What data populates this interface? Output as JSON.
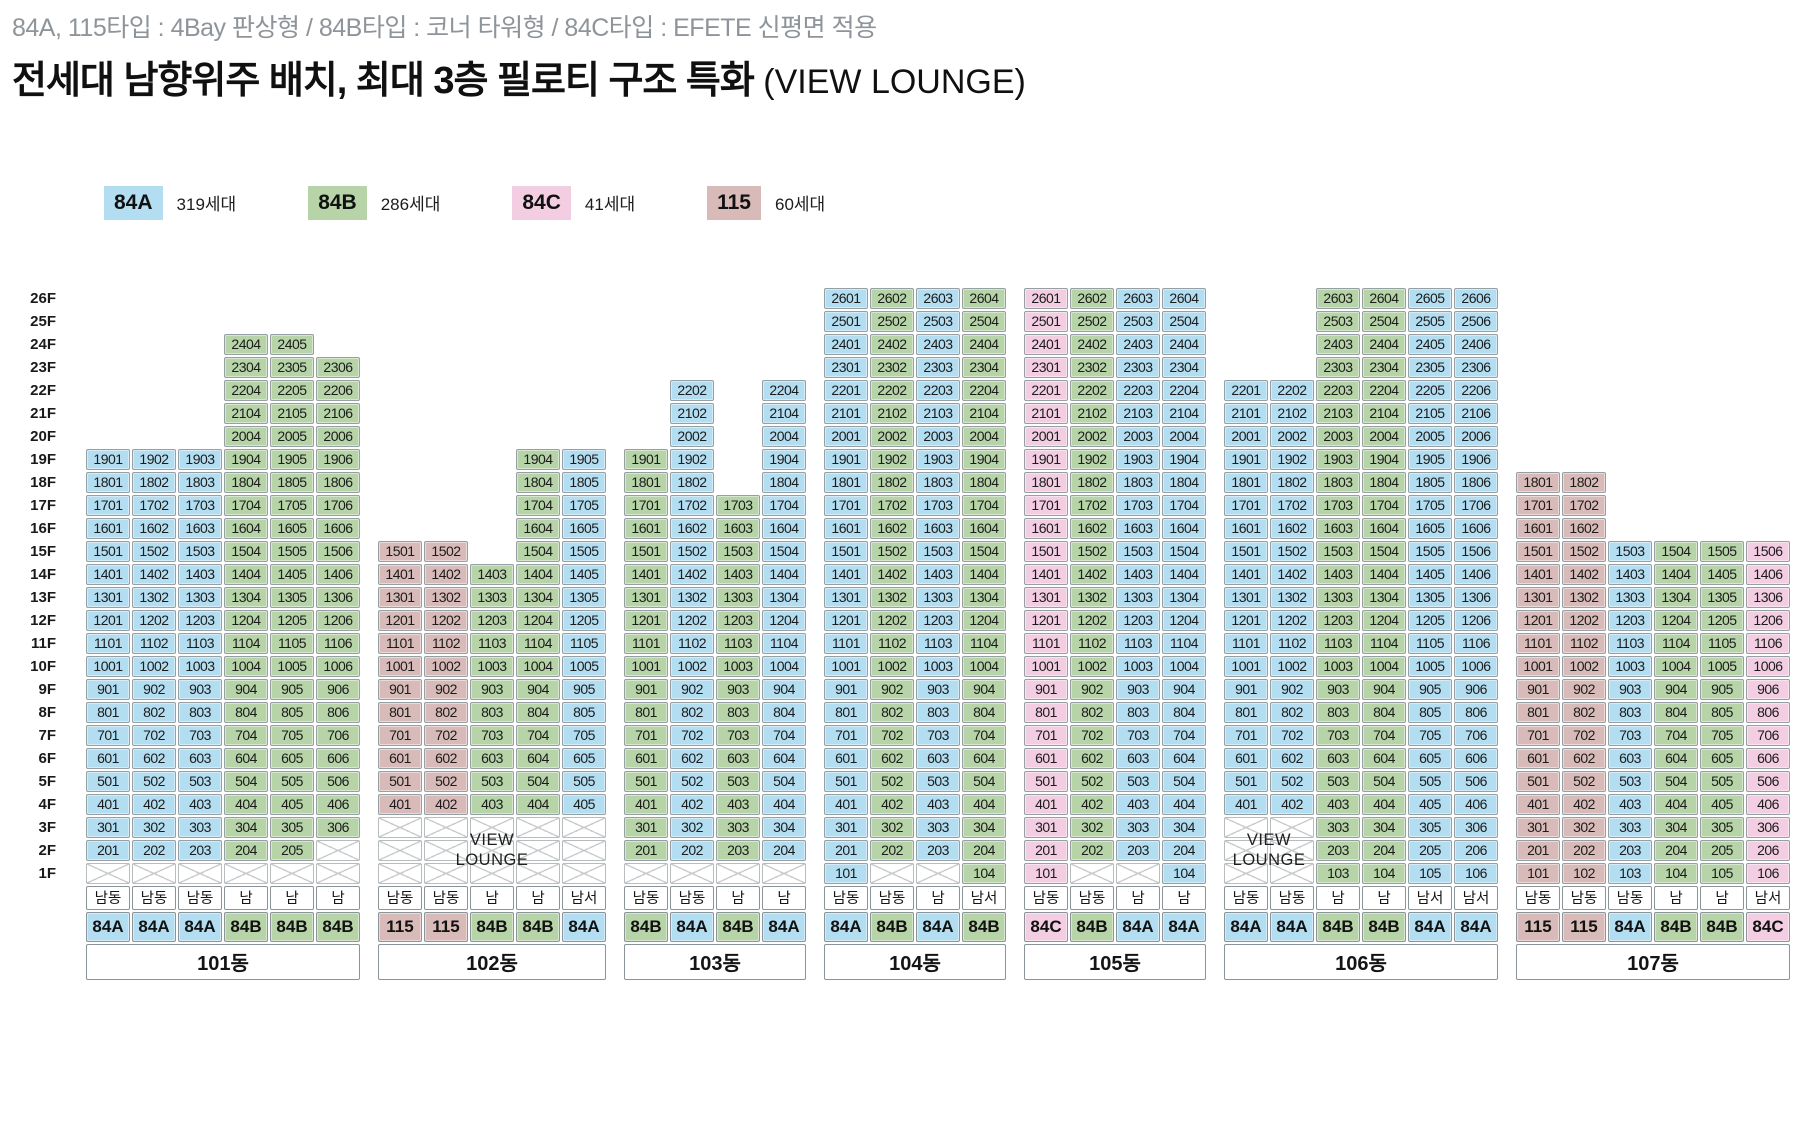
{
  "header": {
    "subtitle": "84A, 115타입 : 4Bay 판상형 / 84B타입 : 코너 타워형 / 84C타입 : EFETE 신평면 적용",
    "title": "전세대 남향위주 배치, 최대 3층 필로티 구조 특화",
    "title_suffix": " (VIEW LOUNGE)"
  },
  "legend": [
    {
      "type": "84A",
      "count": "319세대"
    },
    {
      "type": "84B",
      "count": "286세대"
    },
    {
      "type": "84C",
      "count": "41세대"
    },
    {
      "type": "115",
      "count": "60세대"
    }
  ],
  "colors": {
    "84A": "#b3ddf1",
    "84B": "#b6d4a8",
    "84C": "#f3cee2",
    "115": "#d8bbb9"
  },
  "max_floor": 26,
  "floor_labels": [
    "26F",
    "25F",
    "24F",
    "23F",
    "22F",
    "21F",
    "20F",
    "19F",
    "18F",
    "17F",
    "16F",
    "15F",
    "14F",
    "13F",
    "12F",
    "11F",
    "10F",
    "9F",
    "8F",
    "7F",
    "6F",
    "5F",
    "4F",
    "3F",
    "2F",
    "1F"
  ],
  "lounge_label": "VIEW\nLOUNGE",
  "buildings": [
    {
      "name": "101동",
      "columns": [
        {
          "type": "84A",
          "dir": "남동",
          "from_floor": 2,
          "to_floor": 19
        },
        {
          "type": "84A",
          "dir": "남동",
          "from_floor": 2,
          "to_floor": 19
        },
        {
          "type": "84A",
          "dir": "남동",
          "from_floor": 2,
          "to_floor": 19
        },
        {
          "type": "84B",
          "dir": "남",
          "from_floor": 2,
          "to_floor": 24
        },
        {
          "type": "84B",
          "dir": "남",
          "from_floor": 2,
          "to_floor": 24
        },
        {
          "type": "84B",
          "dir": "남",
          "from_floor": 3,
          "to_floor": 23
        }
      ],
      "voids": [
        {
          "floor": 1,
          "cols": [
            1,
            2,
            3,
            4,
            5,
            6
          ]
        },
        {
          "floor": 2,
          "cols": [
            6
          ]
        }
      ]
    },
    {
      "name": "102동",
      "columns": [
        {
          "type": "115",
          "dir": "남동",
          "from_floor": 4,
          "to_floor": 15
        },
        {
          "type": "115",
          "dir": "남동",
          "from_floor": 4,
          "to_floor": 15
        },
        {
          "type": "84B",
          "dir": "남",
          "from_floor": 4,
          "to_floor": 14
        },
        {
          "type": "84B",
          "dir": "남",
          "from_floor": 4,
          "to_floor": 19
        },
        {
          "type": "84A",
          "dir": "남서",
          "from_floor": 4,
          "to_floor": 19
        }
      ],
      "voids": [
        {
          "floor": 1,
          "cols": [
            1,
            2,
            3,
            4,
            5
          ]
        },
        {
          "floor": 2,
          "cols": [
            1,
            2,
            3,
            4,
            5
          ]
        },
        {
          "floor": 3,
          "cols": [
            1,
            2,
            3,
            4,
            5
          ]
        }
      ],
      "lounge": {
        "col_start": 2,
        "col_span": 3,
        "top_floor": 3,
        "floor_span": 3
      }
    },
    {
      "name": "103동",
      "columns": [
        {
          "type": "84B",
          "dir": "남동",
          "from_floor": 2,
          "to_floor": 19
        },
        {
          "type": "84A",
          "dir": "남동",
          "from_floor": 2,
          "to_floor": 22
        },
        {
          "type": "84B",
          "dir": "남",
          "from_floor": 2,
          "to_floor": 17
        },
        {
          "type": "84A",
          "dir": "남",
          "from_floor": 2,
          "to_floor": 22
        }
      ],
      "voids": [
        {
          "floor": 1,
          "cols": [
            1,
            2,
            3,
            4
          ]
        }
      ]
    },
    {
      "name": "104동",
      "columns": [
        {
          "type": "84A",
          "dir": "남동",
          "from_floor": 1,
          "to_floor": 26
        },
        {
          "type": "84B",
          "dir": "남동",
          "from_floor": 2,
          "to_floor": 26
        },
        {
          "type": "84A",
          "dir": "남",
          "from_floor": 2,
          "to_floor": 26
        },
        {
          "type": "84B",
          "dir": "남서",
          "from_floor": 1,
          "to_floor": 26
        }
      ],
      "voids": [
        {
          "floor": 1,
          "cols": [
            2,
            3
          ]
        }
      ]
    },
    {
      "name": "105동",
      "columns": [
        {
          "type": "84C",
          "dir": "남동",
          "from_floor": 1,
          "to_floor": 26
        },
        {
          "type": "84B",
          "dir": "남동",
          "from_floor": 2,
          "to_floor": 26
        },
        {
          "type": "84A",
          "dir": "남",
          "from_floor": 2,
          "to_floor": 26
        },
        {
          "type": "84A",
          "dir": "남",
          "from_floor": 1,
          "to_floor": 26
        }
      ],
      "voids": [
        {
          "floor": 1,
          "cols": [
            2,
            3
          ]
        }
      ]
    },
    {
      "name": "106동",
      "columns": [
        {
          "type": "84A",
          "dir": "남동",
          "from_floor": 4,
          "to_floor": 22
        },
        {
          "type": "84A",
          "dir": "남동",
          "from_floor": 4,
          "to_floor": 22
        },
        {
          "type": "84B",
          "dir": "남",
          "from_floor": 1,
          "to_floor": 26
        },
        {
          "type": "84B",
          "dir": "남",
          "from_floor": 1,
          "to_floor": 26
        },
        {
          "type": "84A",
          "dir": "남서",
          "from_floor": 1,
          "to_floor": 26
        },
        {
          "type": "84A",
          "dir": "남서",
          "from_floor": 1,
          "to_floor": 26
        }
      ],
      "voids": [
        {
          "floor": 1,
          "cols": [
            1,
            2
          ]
        },
        {
          "floor": 2,
          "cols": [
            1,
            2
          ]
        },
        {
          "floor": 3,
          "cols": [
            1,
            2
          ]
        }
      ],
      "lounge": {
        "col_start": 1,
        "col_span": 2,
        "top_floor": 3,
        "floor_span": 3
      }
    },
    {
      "name": "107동",
      "columns": [
        {
          "type": "115",
          "dir": "남동",
          "from_floor": 1,
          "to_floor": 18
        },
        {
          "type": "115",
          "dir": "남동",
          "from_floor": 1,
          "to_floor": 18
        },
        {
          "type": "84A",
          "dir": "남동",
          "from_floor": 1,
          "to_floor": 15
        },
        {
          "type": "84B",
          "dir": "남",
          "from_floor": 1,
          "to_floor": 15
        },
        {
          "type": "84B",
          "dir": "남",
          "from_floor": 1,
          "to_floor": 15
        },
        {
          "type": "84C",
          "dir": "남서",
          "from_floor": 1,
          "to_floor": 15
        }
      ],
      "voids": []
    }
  ]
}
